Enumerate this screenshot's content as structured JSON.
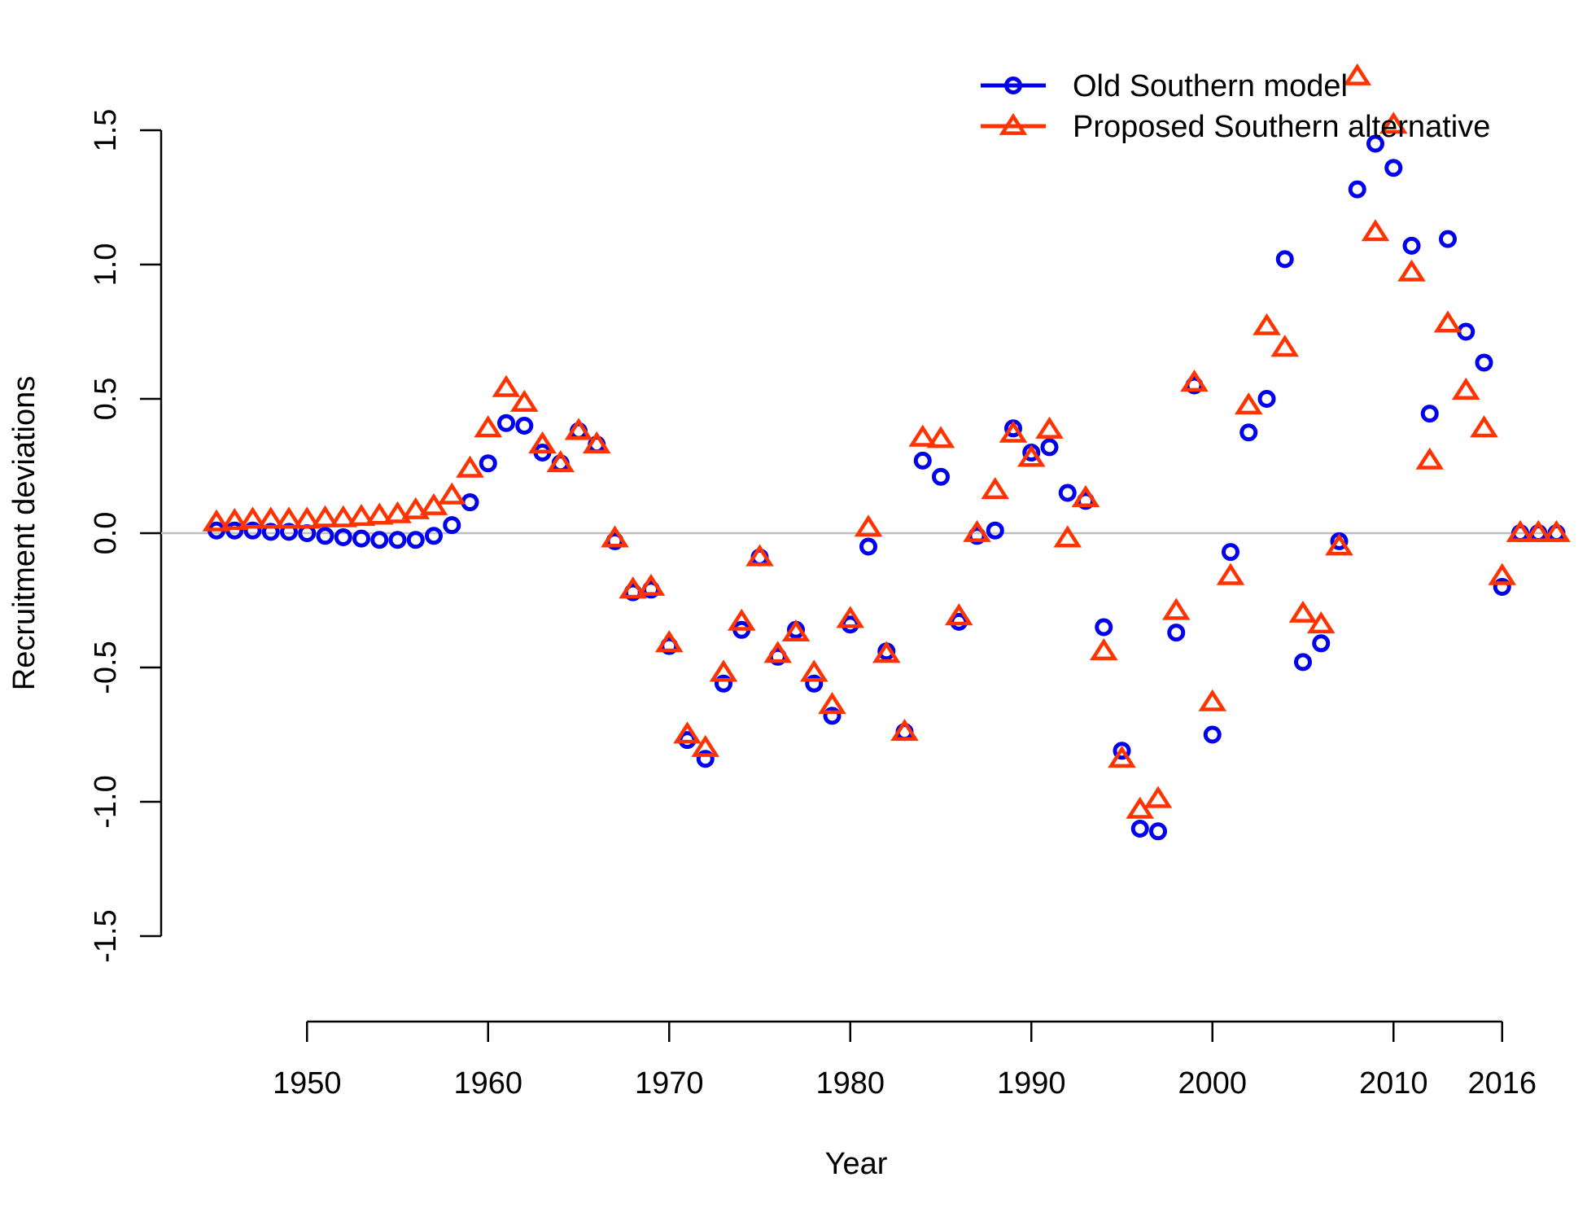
{
  "chart_data": {
    "type": "scatter",
    "title": "",
    "xlabel": "Year",
    "ylabel": "Recruitment deviations",
    "xlim": [
      1940,
      2019
    ],
    "ylim": [
      -1.5,
      1.5
    ],
    "xticks": [
      1950,
      1960,
      1970,
      1980,
      1990,
      2000,
      2010,
      2016
    ],
    "yticks": [
      -1.5,
      -1.0,
      -0.5,
      0.0,
      0.5,
      1.0,
      1.5
    ],
    "ytick_labels": [
      "-1.5",
      "-1.0",
      "-0.5",
      "0.0",
      "0.5",
      "1.0",
      "1.5"
    ],
    "reference_line": 0,
    "grid": false,
    "legend_position": "top-right",
    "x": [
      1945,
      1946,
      1947,
      1948,
      1949,
      1950,
      1951,
      1952,
      1953,
      1954,
      1955,
      1956,
      1957,
      1958,
      1959,
      1960,
      1961,
      1962,
      1963,
      1964,
      1965,
      1966,
      1967,
      1968,
      1969,
      1970,
      1971,
      1972,
      1973,
      1974,
      1975,
      1976,
      1977,
      1978,
      1979,
      1980,
      1981,
      1982,
      1983,
      1984,
      1985,
      1986,
      1987,
      1988,
      1989,
      1990,
      1991,
      1992,
      1993,
      1994,
      1995,
      1996,
      1997,
      1998,
      1999,
      2000,
      2001,
      2002,
      2003,
      2004,
      2005,
      2006,
      2007,
      2008,
      2009,
      2010,
      2011,
      2012,
      2013,
      2014,
      2015,
      2016,
      2017,
      2018,
      2019
    ],
    "series": [
      {
        "name": "Old Southern model",
        "marker": "circle",
        "color": "#0000ee",
        "values": [
          0.01,
          0.01,
          0.01,
          0.005,
          0.005,
          0.0,
          -0.01,
          -0.015,
          -0.02,
          -0.025,
          -0.025,
          -0.025,
          -0.01,
          0.03,
          0.115,
          0.26,
          0.41,
          0.4,
          0.3,
          0.26,
          0.38,
          0.33,
          -0.03,
          -0.22,
          -0.21,
          -0.42,
          -0.77,
          -0.84,
          -0.56,
          -0.36,
          -0.09,
          -0.46,
          -0.36,
          -0.56,
          -0.68,
          -0.34,
          -0.05,
          -0.44,
          -0.74,
          0.27,
          0.21,
          -0.33,
          -0.01,
          0.01,
          0.39,
          0.3,
          0.32,
          0.15,
          0.12,
          -0.35,
          -0.81,
          -1.1,
          -1.11,
          -0.37,
          0.55,
          -0.75,
          -0.07,
          0.375,
          0.5,
          1.02,
          -0.48,
          -0.41,
          -0.03,
          1.28,
          1.45,
          1.36,
          1.07,
          0.445,
          1.095,
          0.75,
          0.635,
          -0.2,
          0.0,
          0.0,
          0.0
        ]
      },
      {
        "name": "Proposed Southern alternative",
        "marker": "triangle",
        "color": "#ff3300",
        "values": [
          0.04,
          0.045,
          0.05,
          0.05,
          0.05,
          0.05,
          0.055,
          0.055,
          0.06,
          0.065,
          0.07,
          0.085,
          0.1,
          0.14,
          0.24,
          0.39,
          0.54,
          0.485,
          0.33,
          0.26,
          0.38,
          0.33,
          -0.02,
          -0.21,
          -0.2,
          -0.41,
          -0.75,
          -0.8,
          -0.52,
          -0.33,
          -0.09,
          -0.45,
          -0.37,
          -0.52,
          -0.64,
          -0.32,
          0.02,
          -0.45,
          -0.74,
          0.355,
          0.35,
          -0.31,
          0.0,
          0.16,
          0.37,
          0.28,
          0.385,
          -0.02,
          0.13,
          -0.44,
          -0.84,
          -1.03,
          -0.99,
          -0.29,
          0.56,
          -0.63,
          -0.16,
          0.475,
          0.77,
          0.69,
          -0.3,
          -0.34,
          -0.05,
          1.7,
          1.12,
          1.52,
          0.97,
          0.27,
          0.78,
          0.53,
          0.39,
          -0.16,
          0.0,
          0.0,
          0.0
        ]
      }
    ]
  }
}
